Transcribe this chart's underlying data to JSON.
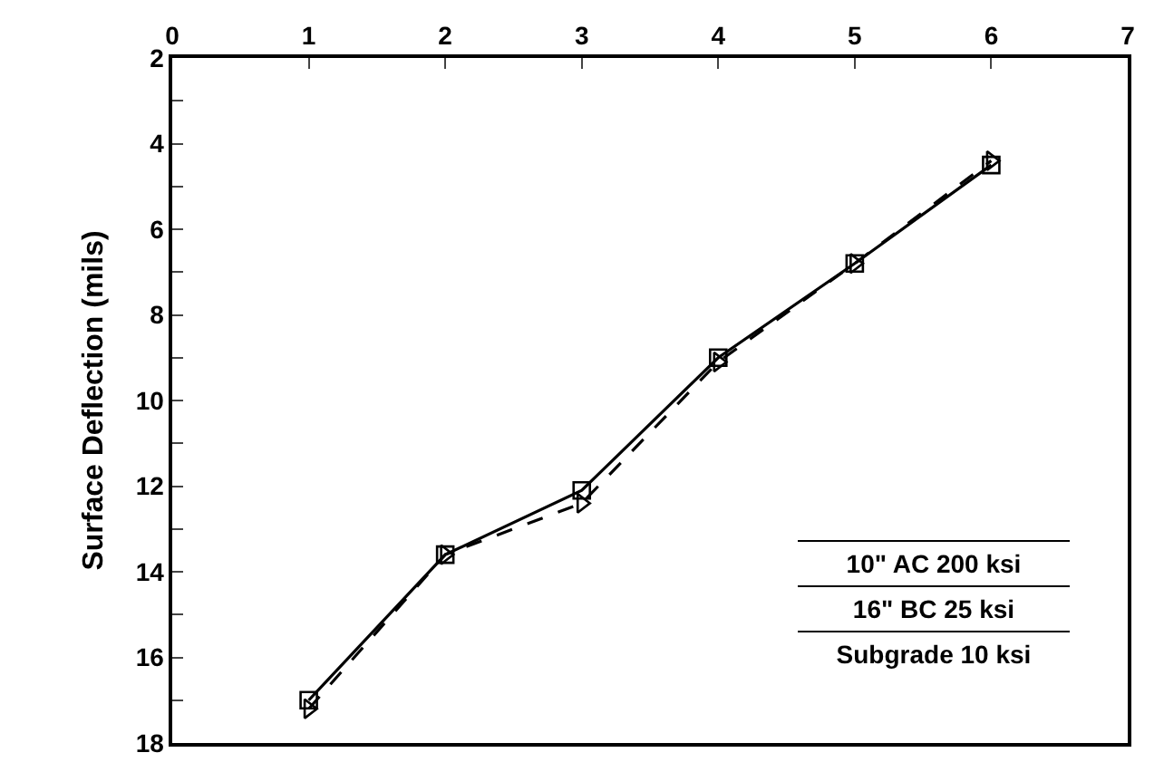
{
  "chart_data": {
    "type": "line",
    "ylabel": "Surface Deflection (mils)",
    "x": [
      1,
      2,
      3,
      4,
      5,
      6
    ],
    "series": [
      {
        "color": "#000000",
        "marker": "square",
        "line_style": "solid",
        "values": [
          17.0,
          13.6,
          12.1,
          9.0,
          6.8,
          4.5
        ]
      },
      {
        "color": "#000000",
        "marker": "triangle",
        "line_style": "dashed",
        "values": [
          17.2,
          13.6,
          12.4,
          9.1,
          6.8,
          4.4
        ]
      }
    ],
    "xlim": [
      0,
      7
    ],
    "xticks": [
      0,
      1,
      2,
      3,
      4,
      5,
      6,
      7
    ],
    "ylim": [
      18,
      2
    ],
    "yticks": [
      2,
      {
        "value": 3,
        "label": null
      },
      4,
      {
        "value": 5,
        "label": null
      },
      6,
      {
        "value": 7,
        "label": null
      },
      8,
      {
        "value": 9,
        "label": null
      },
      10,
      {
        "value": 11,
        "label": null
      },
      12,
      {
        "value": 13,
        "label": null
      },
      14,
      {
        "value": 15,
        "label": null
      },
      16,
      {
        "value": 17,
        "label": null
      },
      18
    ],
    "grid": false,
    "annotations": [
      "10\" AC 200 ksi",
      "16\" BC 25 ksi",
      "Subgrade 10 ksi"
    ]
  }
}
